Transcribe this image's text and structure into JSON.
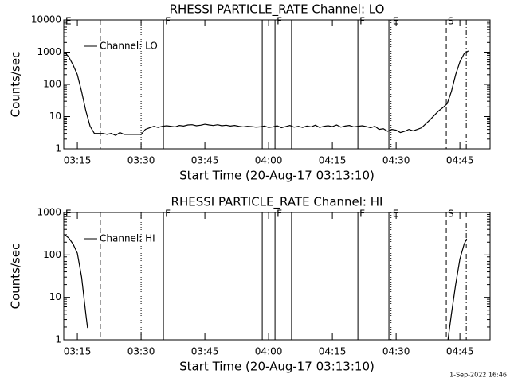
{
  "chart_data": [
    {
      "type": "line",
      "title": "RHESSI PARTICLE_RATE Channel: LO",
      "xlabel": "Start Time (20-Aug-17 03:13:10)",
      "ylabel": "Counts/sec",
      "x": [
        192,
        193,
        194,
        195,
        196,
        197,
        198,
        199,
        200,
        201,
        202,
        203,
        204,
        205,
        206,
        207,
        208,
        209,
        210,
        211,
        212,
        213,
        214,
        215,
        216,
        217,
        218,
        219,
        220,
        221,
        222,
        223,
        224,
        225,
        226,
        227,
        228,
        229,
        230,
        231,
        232,
        233,
        234,
        235,
        236,
        237,
        238,
        239,
        240,
        241,
        242,
        243,
        244,
        245,
        246,
        247,
        248,
        249,
        250,
        251,
        252,
        253,
        254,
        255,
        256,
        257,
        258,
        259,
        260,
        261,
        262,
        263,
        264,
        265,
        266,
        267,
        268,
        269,
        270,
        271,
        272,
        273,
        274,
        275,
        276,
        277,
        278,
        279,
        280,
        281,
        282,
        283,
        284,
        285,
        286,
        287
      ],
      "series": [
        {
          "name": "Channel: LO",
          "color": "#000000",
          "values": [
            1000,
            700,
            400,
            200,
            60,
            15,
            5,
            3,
            3,
            3,
            2.8,
            3,
            2.6,
            3.2,
            2.8,
            2.8,
            2.8,
            2.8,
            2.8,
            4,
            4.5,
            5,
            4.6,
            5,
            5.2,
            5,
            4.8,
            5.3,
            5.1,
            5.5,
            5.6,
            5.2,
            5.4,
            5.8,
            5.5,
            5.3,
            5.6,
            5.2,
            5.4,
            5.1,
            5.3,
            5,
            4.8,
            5,
            4.9,
            4.7,
            4.8,
            5.1,
            4.6,
            4.8,
            5.2,
            4.5,
            4.9,
            5.3,
            4.7,
            5,
            4.6,
            5.1,
            4.8,
            5.4,
            4.6,
            5,
            5.2,
            4.9,
            5.5,
            4.7,
            5.1,
            5.3,
            4.8,
            5,
            5.2,
            4.9,
            4.5,
            5,
            4,
            4.2,
            3.5,
            4,
            3.8,
            3.2,
            3.5,
            4,
            3.6,
            4,
            4.5,
            6,
            8,
            11,
            15,
            19,
            25,
            60,
            200,
            500,
            900,
            1100
          ]
        }
      ],
      "xlim": [
        191.8,
        292.1
      ],
      "ylim": [
        1,
        10000
      ],
      "log_y": true,
      "xticks": [
        {
          "value": 195,
          "label": "03:15"
        },
        {
          "value": 210,
          "label": "03:30"
        },
        {
          "value": 225,
          "label": "03:45"
        },
        {
          "value": 240,
          "label": "04:00"
        },
        {
          "value": 255,
          "label": "04:15"
        },
        {
          "value": 270,
          "label": "04:30"
        },
        {
          "value": 285,
          "label": "04:45"
        }
      ],
      "yticks": [
        1,
        10,
        100,
        1000,
        10000
      ],
      "legend": "upper left",
      "vlines": [
        {
          "x": 200.4,
          "style": "dashed"
        },
        {
          "x": 210.0,
          "style": "dotted"
        },
        {
          "x": 215.25,
          "style": "solid"
        },
        {
          "x": 238.5,
          "style": "solid"
        },
        {
          "x": 241.5,
          "style": "solid"
        },
        {
          "x": 245.4,
          "style": "solid"
        },
        {
          "x": 261.0,
          "style": "solid"
        },
        {
          "x": 268.3,
          "style": "solid"
        },
        {
          "x": 268.8,
          "style": "dotted"
        },
        {
          "x": 281.8,
          "style": "dashed"
        },
        {
          "x": 286.5,
          "style": "dash-dot"
        }
      ],
      "flags": [
        {
          "x": 191.8,
          "label": "E"
        },
        {
          "x": 215.25,
          "label": "F"
        },
        {
          "x": 241.5,
          "label": "F"
        },
        {
          "x": 261.0,
          "label": "F"
        },
        {
          "x": 268.8,
          "label": "E"
        },
        {
          "x": 281.8,
          "label": "S"
        }
      ]
    },
    {
      "type": "line",
      "title": "RHESSI PARTICLE_RATE Channel: HI",
      "xlabel": "Start Time (20-Aug-17 03:13:10)",
      "ylabel": "Counts/sec",
      "x": [
        192,
        193,
        194,
        195,
        196,
        197,
        197.4,
        240,
        282.2,
        283,
        284,
        285,
        286,
        286.6
      ],
      "series": [
        {
          "name": "Channel: HI",
          "color": "#000000",
          "values": [
            300,
            250,
            180,
            110,
            30,
            4,
            1.9,
            null,
            1,
            4,
            20,
            80,
            180,
            240
          ]
        }
      ],
      "xlim": [
        191.8,
        292.1
      ],
      "ylim": [
        1,
        1000
      ],
      "log_y": true,
      "xticks": [
        {
          "value": 195,
          "label": "03:15"
        },
        {
          "value": 210,
          "label": "03:30"
        },
        {
          "value": 225,
          "label": "03:45"
        },
        {
          "value": 240,
          "label": "04:00"
        },
        {
          "value": 255,
          "label": "04:15"
        },
        {
          "value": 270,
          "label": "04:30"
        },
        {
          "value": 285,
          "label": "04:45"
        }
      ],
      "yticks": [
        1,
        10,
        100,
        1000
      ],
      "legend": "upper left",
      "vlines": [
        {
          "x": 200.4,
          "style": "dashed"
        },
        {
          "x": 210.0,
          "style": "dotted"
        },
        {
          "x": 215.25,
          "style": "solid"
        },
        {
          "x": 238.5,
          "style": "solid"
        },
        {
          "x": 241.5,
          "style": "solid"
        },
        {
          "x": 245.4,
          "style": "solid"
        },
        {
          "x": 261.0,
          "style": "solid"
        },
        {
          "x": 268.3,
          "style": "solid"
        },
        {
          "x": 268.8,
          "style": "dotted"
        },
        {
          "x": 281.8,
          "style": "dashed"
        },
        {
          "x": 286.5,
          "style": "dash-dot"
        }
      ],
      "flags": [
        {
          "x": 191.8,
          "label": "E"
        },
        {
          "x": 215.25,
          "label": "F"
        },
        {
          "x": 241.5,
          "label": "F"
        },
        {
          "x": 261.0,
          "label": "F"
        },
        {
          "x": 268.8,
          "label": "E"
        },
        {
          "x": 281.8,
          "label": "S"
        }
      ]
    }
  ],
  "footer": "1-Sep-2022 16:46"
}
